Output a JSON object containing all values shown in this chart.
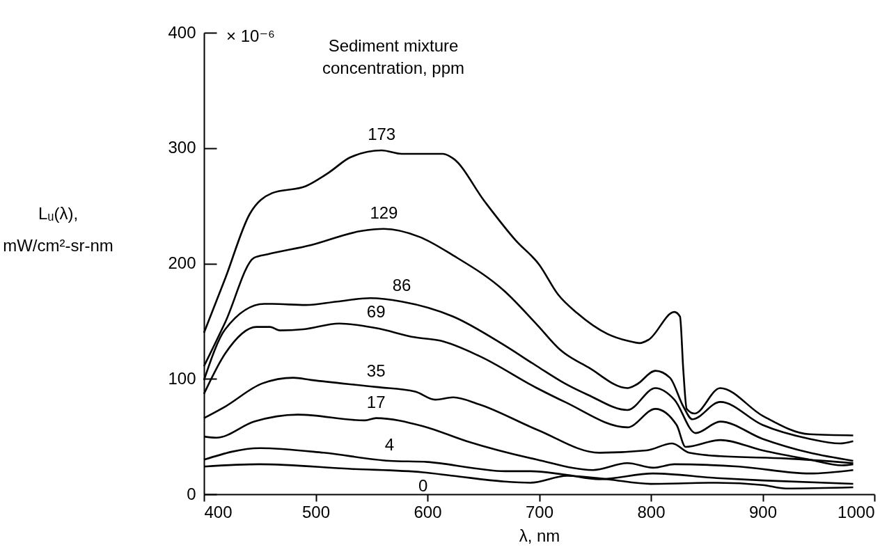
{
  "chart_data": {
    "type": "line",
    "xlabel": "λ, nm",
    "ylabel": "Lᵤ(λ), mW/cm²-sr-nm",
    "annotations": [
      "Sediment mixture concentration, ppm",
      "× 10⁻⁶"
    ],
    "xlim": [
      400,
      1000
    ],
    "ylim": [
      0,
      400
    ],
    "xticks": [
      400,
      500,
      600,
      700,
      800,
      900,
      1000
    ],
    "yticks": [
      0,
      100,
      200,
      300,
      400
    ],
    "grid": false,
    "legend": false,
    "line_style": "solid",
    "marker": "none",
    "series": [
      {
        "name": "173",
        "color": "#000000",
        "x": [
          400,
          419,
          441,
          461,
          491,
          512,
          531,
          559,
          577,
          607,
          614,
          623,
          651,
          679,
          700,
          717,
          734,
          761,
          779,
          790,
          798,
          821,
          826,
          829,
          832,
          839,
          862,
          900,
          942,
          981
        ],
        "values": [
          140,
          187,
          243,
          261,
          267,
          279,
          292,
          298,
          295,
          295,
          295,
          291,
          254,
          220,
          199,
          173,
          157,
          139,
          133,
          131,
          134,
          158,
          154,
          107,
          74,
          70,
          92,
          68,
          52,
          51
        ]
      },
      {
        "name": "129",
        "color": "#000000",
        "x": [
          400,
          419,
          445,
          457,
          496,
          540,
          561,
          593,
          623,
          669,
          698,
          719,
          744,
          779,
          787,
          804,
          817,
          829,
          837,
          862,
          900,
          942,
          969,
          981
        ],
        "values": [
          111,
          149,
          205,
          208,
          216,
          228,
          230,
          223,
          207,
          176,
          147,
          125,
          110,
          92,
          95,
          107,
          101,
          76,
          65,
          80,
          60,
          48,
          44,
          46
        ]
      },
      {
        "name": "86",
        "color": "#000000",
        "x": [
          400,
          419,
          454,
          461,
          491,
          519,
          549,
          577,
          623,
          669,
          698,
          723,
          744,
          779,
          804,
          821,
          840,
          862,
          900,
          942,
          981
        ],
        "values": [
          99,
          143,
          165,
          165,
          164,
          167,
          170,
          167,
          154,
          129,
          111,
          96,
          86,
          73,
          92,
          82,
          53,
          63,
          48,
          36,
          29
        ]
      },
      {
        "name": "69",
        "color": "#000000",
        "x": [
          400,
          419,
          447,
          459,
          468,
          489,
          521,
          554,
          589,
          612,
          646,
          698,
          723,
          779,
          804,
          823,
          831,
          862,
          900,
          942,
          971,
          981
        ],
        "values": [
          87,
          122,
          145,
          145,
          142,
          143,
          148,
          144,
          136,
          133,
          120,
          92,
          80,
          58,
          74,
          60,
          41,
          47,
          38,
          30,
          25,
          26
        ]
      },
      {
        "name": "35",
        "color": "#000000",
        "x": [
          400,
          419,
          452,
          480,
          496,
          554,
          589,
          607,
          623,
          646,
          698,
          754,
          796,
          819,
          834,
          862,
          921,
          981
        ],
        "values": [
          66,
          76,
          96,
          101,
          99,
          93,
          89,
          82,
          84,
          78,
          56,
          36,
          38,
          44,
          36,
          33,
          31,
          27
        ]
      },
      {
        "name": "17",
        "color": "#000000",
        "x": [
          400,
          411,
          445,
          484,
          544,
          554,
          596,
          635,
          698,
          748,
          779,
          802,
          821,
          879,
          942,
          981
        ],
        "values": [
          50,
          49,
          63,
          69,
          64,
          66,
          59,
          46,
          30,
          21,
          27,
          23,
          26,
          24,
          18,
          21
        ]
      },
      {
        "name": "4",
        "color": "#000000",
        "x": [
          400,
          450,
          507,
          566,
          600,
          646,
          669,
          692,
          723,
          754,
          802,
          859,
          900,
          981
        ],
        "values": [
          30,
          40,
          36,
          29,
          28,
          22,
          20,
          20,
          17,
          13,
          18,
          14,
          12,
          9
        ]
      },
      {
        "name": "0",
        "color": "#000000",
        "x": [
          400,
          450,
          531,
          596,
          623,
          669,
          692,
          725,
          761,
          800,
          859,
          900,
          921,
          981
        ],
        "values": [
          24,
          26,
          22,
          19,
          16,
          11,
          10,
          16,
          13,
          9,
          10,
          8,
          5,
          6
        ]
      }
    ]
  }
}
